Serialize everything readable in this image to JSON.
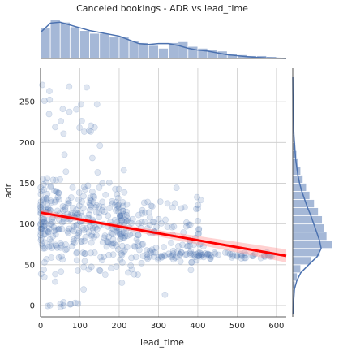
{
  "chart_data": {
    "type": "scatter",
    "title": "Canceled bookings - ADR vs lead_time",
    "xlabel": "lead_time",
    "ylabel": "adr",
    "xlim": [
      0,
      625
    ],
    "ylim": [
      -14,
      291
    ],
    "x_ticks": [
      0,
      100,
      200,
      300,
      400,
      500,
      600
    ],
    "x_tick_labels": [
      "0",
      "100",
      "200",
      "300",
      "400",
      "500",
      "600"
    ],
    "y_ticks": [
      0,
      50,
      100,
      150,
      200,
      250
    ],
    "y_tick_labels": [
      "0",
      "50",
      "100",
      "150",
      "200",
      "250"
    ],
    "grid": true,
    "colors": {
      "points": "#4c72b0",
      "regression": "#ff0000",
      "band": "#ff9999",
      "hist": "#4c72b0",
      "grid": "#cccccc"
    },
    "regression": {
      "intercept": 114,
      "slope": -0.085,
      "band_halfwidth_end": 6
    },
    "top_histogram": {
      "bin_width": 25,
      "counts": [
        33,
        42,
        39,
        34,
        30,
        27,
        27,
        23,
        23,
        19,
        17,
        14,
        11,
        17,
        18,
        13,
        11,
        9,
        8,
        5,
        4,
        3,
        3,
        2,
        1
      ]
    },
    "top_kde_x": [
      0,
      25,
      50,
      75,
      100,
      125,
      150,
      175,
      200,
      225,
      250,
      275,
      300,
      325,
      350,
      375,
      400,
      425,
      450,
      475,
      500,
      525,
      550,
      575,
      600,
      625
    ],
    "top_kde_y": [
      28,
      38,
      39,
      36,
      33,
      30,
      28,
      26,
      24,
      20,
      16,
      15,
      16,
      16,
      14,
      11,
      9,
      8,
      6,
      4,
      3,
      2,
      1.2,
      0.7,
      0.3,
      0.1
    ],
    "right_histogram": {
      "bin_width": 10,
      "bins_start": 0,
      "counts": [
        2,
        2,
        4,
        8,
        14,
        32,
        48,
        70,
        60,
        55,
        52,
        45,
        38,
        30,
        24,
        18,
        14,
        9,
        7,
        5,
        3,
        2,
        2,
        1,
        1,
        1,
        1
      ]
    },
    "right_kde_y": [
      -10,
      0,
      10,
      20,
      30,
      40,
      50,
      60,
      70,
      80,
      90,
      100,
      110,
      120,
      130,
      140,
      150,
      160,
      170,
      180,
      190,
      200,
      210,
      220,
      230,
      240,
      250,
      260,
      270,
      280
    ],
    "right_kde_x": [
      0.3,
      1,
      2,
      3,
      7,
      14,
      28,
      43,
      50,
      47,
      42,
      37,
      32,
      26,
      21,
      16,
      12,
      9,
      7,
      5,
      4,
      3,
      2,
      1.5,
      1,
      0.7,
      0.5,
      0.3,
      0.2,
      0.1
    ]
  }
}
